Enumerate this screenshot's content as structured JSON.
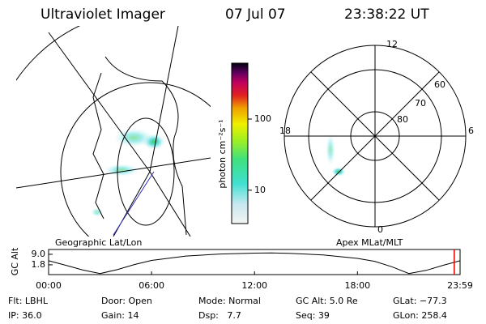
{
  "header": {
    "instrument": "Ultraviolet Imager",
    "date": "07 Jul 07",
    "time": "23:38:22 UT"
  },
  "colorbar": {
    "label": "photon cm⁻²s⁻¹",
    "scale": "log",
    "lim": [
      3.4,
      610
    ],
    "ticks": [
      10,
      100
    ]
  },
  "left_map": {
    "caption": "Geographic Lat/Lon"
  },
  "right_map": {
    "caption": "Apex MLat/MLT",
    "mlt_labels": [
      "12",
      "18",
      "6",
      "0"
    ],
    "lat_labels": [
      "60",
      "70",
      "80"
    ]
  },
  "orbit": {
    "ylabel": "GC Alt",
    "ylim": [
      -4.9,
      12.3
    ],
    "yticks": [
      {
        "value": 9,
        "label": "9.0"
      },
      1.8
    ],
    "xlim": [
      0,
      23.98
    ],
    "xticks": [
      {
        "value": 0,
        "label": "00:00"
      },
      {
        "value": 6,
        "label": "06:00"
      },
      {
        "value": 12,
        "label": "12:00"
      },
      {
        "value": 18,
        "label": "18:00"
      },
      {
        "value": 23.98,
        "label": "23:59"
      }
    ],
    "x": [
      0,
      1,
      2,
      3,
      4,
      5,
      6,
      8,
      10,
      12,
      13,
      14,
      16,
      18,
      19,
      20,
      21,
      22,
      23,
      23.98
    ],
    "values": [
      4.6,
      1.5,
      -1.8,
      -4.2,
      -1.5,
      2.0,
      4.8,
      7.8,
      9.2,
      9.8,
      9.9,
      9.7,
      8.6,
      6.2,
      4.2,
      0.5,
      -4.2,
      -2.0,
      1.5,
      4.6
    ],
    "current_time": 23.64,
    "current_color": "#e00000"
  },
  "footer": {
    "rows": [
      [
        "Flt: LBHL",
        "Door: Open",
        "Mode: Normal",
        "GC Alt: 5.0 Re",
        "GLat: −77.3"
      ],
      [
        "IP: 36.0",
        "Gain: 14",
        "Dsp:   7.7",
        "Seq: 39",
        "GLon: 258.4"
      ]
    ]
  }
}
